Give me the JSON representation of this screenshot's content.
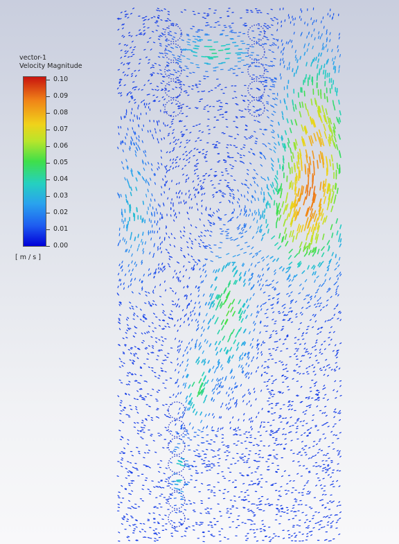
{
  "legend": {
    "name": "vector-1",
    "quantity": "Velocity Magnitude",
    "units": "[ m / s ]",
    "ticks": [
      "0.10",
      "0.09",
      "0.08",
      "0.07",
      "0.06",
      "0.05",
      "0.04",
      "0.03",
      "0.02",
      "0.01",
      "0.00"
    ],
    "colormap": [
      "#0000d8",
      "#1e5cf0",
      "#2aa2ee",
      "#25d0c0",
      "#3fdf4a",
      "#b8e52b",
      "#f0d21a",
      "#f08418",
      "#c8140e"
    ]
  },
  "field": {
    "tube_columns": [
      "upper-left",
      "upper-right",
      "lower-left"
    ],
    "high_velocity_region": "upper-right",
    "max_velocity": 0.1,
    "min_velocity": 0.0
  }
}
